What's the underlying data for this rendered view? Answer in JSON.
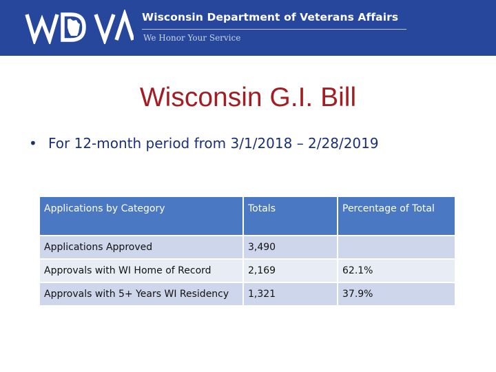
{
  "header": {
    "logo_text": "WDVA",
    "org_name": "Wisconsin Department of Veterans Affairs",
    "tagline": "We Honor Your Service",
    "background_color": "#26479c"
  },
  "slide": {
    "title": "Wisconsin G.I. Bill",
    "title_color": "#a31c22",
    "bullet": "For 12-month period from 3/1/2018 – 2/28/2019",
    "bullet_symbol": "•"
  },
  "table": {
    "header": {
      "col1": "Applications by Category",
      "col2": "Totals",
      "col3": "Percentage of Total"
    },
    "rows": [
      {
        "category": "Applications Approved",
        "total": "3,490",
        "percent": ""
      },
      {
        "category": "Approvals with WI Home of Record",
        "total": "2,169",
        "percent": "62.1%"
      },
      {
        "category": "Approvals with 5+ Years WI Residency",
        "total": "1,321",
        "percent": "37.9%"
      }
    ],
    "header_color": "#4a78c2"
  }
}
